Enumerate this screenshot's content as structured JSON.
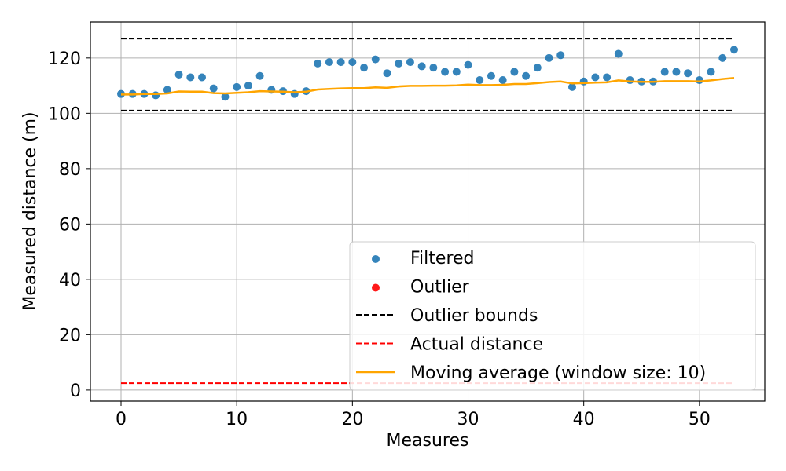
{
  "chart_data": {
    "type": "scatter",
    "title": "",
    "xlabel": "Measures",
    "ylabel": "Measured distance (m)",
    "xlim": [
      -2.65,
      55.65
    ],
    "ylim": [
      -4,
      133
    ],
    "xticks": [
      0,
      10,
      20,
      30,
      40,
      50
    ],
    "yticks": [
      0,
      20,
      40,
      60,
      80,
      100,
      120
    ],
    "grid": true,
    "legend_position": "lower-right",
    "series": [
      {
        "name": "Filtered",
        "kind": "scatter",
        "color": "#1f77b4",
        "x": [
          0,
          1,
          2,
          3,
          4,
          5,
          6,
          7,
          8,
          9,
          10,
          11,
          12,
          13,
          14,
          15,
          16,
          17,
          18,
          19,
          20,
          21,
          22,
          23,
          24,
          25,
          26,
          27,
          28,
          29,
          30,
          31,
          32,
          33,
          34,
          35,
          36,
          37,
          38,
          39,
          40,
          41,
          42,
          43,
          44,
          45,
          46,
          47,
          48,
          49,
          50,
          51,
          52,
          53
        ],
        "values": [
          107.0,
          107.0,
          107.0,
          106.5,
          108.5,
          114.0,
          113.0,
          113.0,
          109.0,
          106.0,
          109.5,
          110.0,
          113.5,
          108.5,
          108.0,
          107.0,
          108.0,
          118.0,
          118.5,
          118.5,
          118.5,
          116.5,
          119.5,
          114.5,
          118.0,
          118.5,
          117.0,
          116.5,
          115.0,
          115.0,
          117.5,
          112.0,
          113.5,
          112.0,
          115.0,
          113.5,
          116.5,
          120.0,
          121.0,
          109.5,
          111.5,
          113.0,
          113.0,
          121.5,
          112.0,
          111.5,
          111.5,
          115.0,
          115.0,
          114.5,
          112.0,
          115.0,
          120.0,
          123.0
        ]
      },
      {
        "name": "Outlier",
        "kind": "scatter",
        "color": "#ff0000",
        "x": [],
        "values": []
      },
      {
        "name": "Outlier bounds",
        "kind": "dashed-line",
        "color": "#000000",
        "x": [
          0,
          53
        ],
        "values_upper": [
          127,
          127
        ],
        "values_lower": [
          101,
          101
        ]
      },
      {
        "name": "Actual distance",
        "kind": "dashed-line",
        "color": "#ff0000",
        "x": [
          0,
          53
        ],
        "values": [
          2.5,
          2.5
        ]
      },
      {
        "name": "Moving average (window size: 10)",
        "kind": "line",
        "color": "#ffa500",
        "x": [
          0,
          1,
          2,
          3,
          4,
          5,
          6,
          7,
          8,
          9,
          10,
          11,
          12,
          13,
          14,
          15,
          16,
          17,
          18,
          19,
          20,
          21,
          22,
          23,
          24,
          25,
          26,
          27,
          28,
          29,
          30,
          31,
          32,
          33,
          34,
          35,
          36,
          37,
          38,
          39,
          40,
          41,
          42,
          43,
          44,
          45,
          46,
          47,
          48,
          49,
          50,
          51,
          52,
          53
        ],
        "values": [
          106.8,
          106.8,
          107.0,
          107.0,
          107.2,
          107.9,
          107.8,
          107.8,
          107.3,
          107.2,
          107.4,
          107.6,
          108.0,
          107.9,
          107.8,
          107.6,
          107.8,
          108.6,
          108.8,
          109.0,
          109.1,
          109.1,
          109.4,
          109.2,
          109.7,
          109.9,
          109.9,
          110.0,
          110.0,
          110.1,
          110.4,
          110.2,
          110.2,
          110.3,
          110.6,
          110.6,
          110.9,
          111.3,
          111.5,
          110.8,
          110.9,
          111.1,
          111.2,
          111.9,
          111.5,
          111.4,
          111.4,
          111.6,
          111.6,
          111.6,
          111.5,
          111.9,
          112.4,
          112.8
        ]
      }
    ]
  }
}
